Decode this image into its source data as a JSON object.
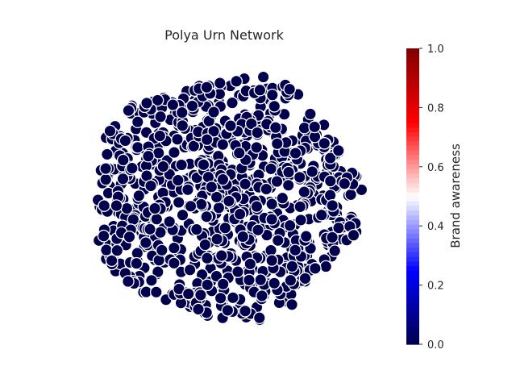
{
  "chart_data": {
    "type": "scatter",
    "title": "Polya Urn Network",
    "node_value": 0.0,
    "node_color": "#000040",
    "node_edge_color": "#ffffff",
    "edge_color": "#ffffff",
    "colorbar": {
      "label": "Brand awareness",
      "min": 0.0,
      "max": 1.0,
      "colormap": "seismic",
      "ticks": [
        {
          "value": 0.0,
          "label": "0.0"
        },
        {
          "value": 0.2,
          "label": "0.2"
        },
        {
          "value": 0.4,
          "label": "0.4"
        },
        {
          "value": 0.6,
          "label": "0.6"
        },
        {
          "value": 0.8,
          "label": "0.8"
        },
        {
          "value": 1.0,
          "label": "1.0"
        }
      ],
      "position": "right"
    },
    "grid": false
  }
}
